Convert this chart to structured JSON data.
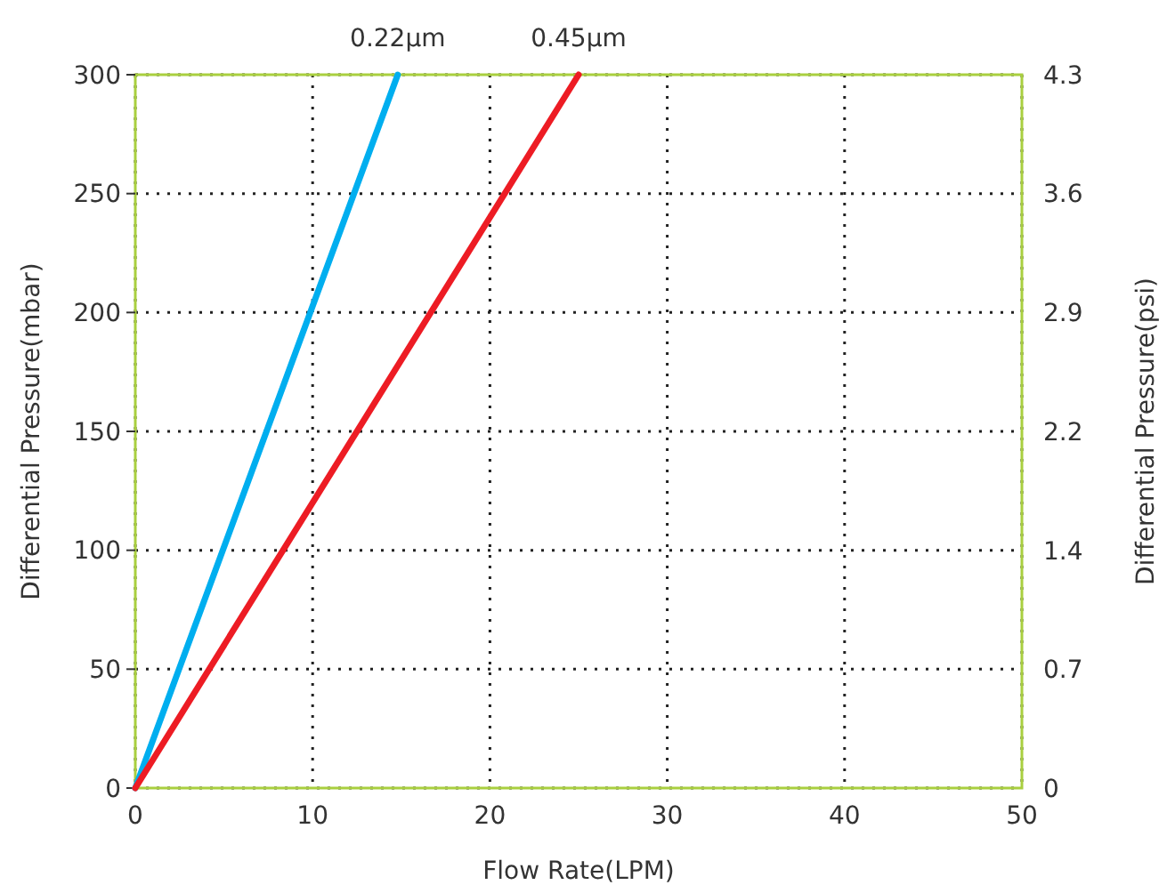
{
  "chart_data": {
    "type": "line",
    "xlabel": "Flow Rate(LPM)",
    "ylabel": "Differential Pressure(mbar)",
    "y2label": "Differential Pressure(psi)",
    "xlim": [
      0,
      50
    ],
    "xticks": [
      0,
      10,
      20,
      30,
      40,
      50
    ],
    "ylim": [
      0,
      300
    ],
    "yticks": [
      0,
      50,
      100,
      150,
      200,
      250,
      300
    ],
    "y2lim": [
      0,
      4.349
    ],
    "y2ticks": [
      0,
      {
        "value": 0.725,
        "label": "0.7"
      },
      {
        "value": 1.449,
        "label": "1.4"
      },
      {
        "value": 2.174,
        "label": "2.2"
      },
      {
        "value": 2.899,
        "label": "2.9"
      },
      {
        "value": 3.624,
        "label": "3.6"
      },
      {
        "value": 4.349,
        "label": "4.3"
      }
    ],
    "grid": true,
    "line_style": "solid",
    "marker": "none",
    "series": [
      {
        "name": "0.22µm",
        "color": "#00aeef",
        "x": [
          0,
          14.8
        ],
        "values": [
          0,
          300
        ]
      },
      {
        "name": "0.45µm",
        "color": "#ed1c24",
        "x": [
          0,
          25
        ],
        "values": [
          0,
          300
        ]
      }
    ]
  }
}
